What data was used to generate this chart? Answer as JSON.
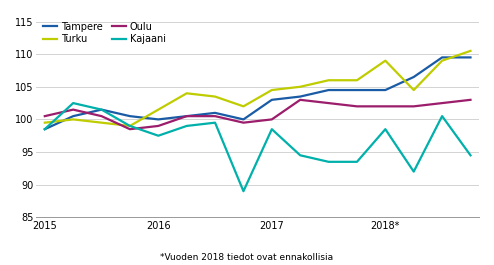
{
  "x_labels": [
    "2015",
    "2016",
    "2017",
    "2018*"
  ],
  "x_tick_positions": [
    0,
    4,
    8,
    12
  ],
  "tampere": [
    98.5,
    100.5,
    101.5,
    100.5,
    100.0,
    100.5,
    101.0,
    100.0,
    103.0,
    103.5,
    104.5,
    104.5,
    104.5,
    106.5,
    109.5,
    109.5
  ],
  "turku": [
    99.5,
    100.0,
    99.5,
    99.0,
    101.5,
    104.0,
    103.5,
    102.0,
    104.5,
    105.0,
    106.0,
    106.0,
    109.0,
    104.5,
    109.0,
    110.5
  ],
  "oulu": [
    100.5,
    101.5,
    100.5,
    98.5,
    99.0,
    100.5,
    100.5,
    99.5,
    100.0,
    103.0,
    102.5,
    102.0,
    102.0,
    102.0,
    102.5,
    103.0
  ],
  "kajaani": [
    98.5,
    102.5,
    101.5,
    99.0,
    97.5,
    99.0,
    99.5,
    89.0,
    98.5,
    94.5,
    93.5,
    93.5,
    98.5,
    92.0,
    100.5,
    94.5
  ],
  "colors": {
    "tampere": "#1a5ba6",
    "turku": "#bfcc00",
    "oulu": "#9b1d6b",
    "kajaani": "#00b0aa"
  },
  "ylim": [
    85,
    116
  ],
  "yticks": [
    85,
    90,
    95,
    100,
    105,
    110,
    115
  ],
  "footnote": "*Vuoden 2018 tiedot ovat ennakollisia",
  "linewidth": 1.6
}
